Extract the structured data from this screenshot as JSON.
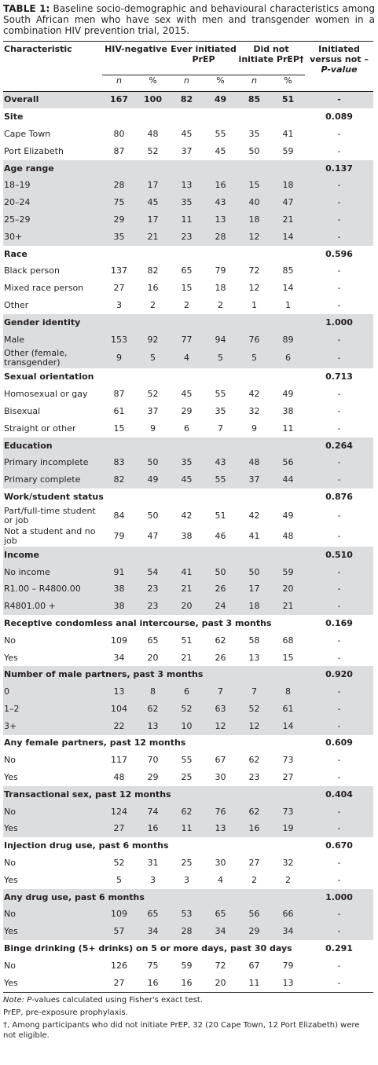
{
  "caption": {
    "label": "TABLE 1:",
    "text": " Baseline socio-demographic and behavioural characteristics among South African men who have sex with men and transgender women in a combination HIV prevention trial, 2015."
  },
  "header": {
    "characteristic": "Characteristic",
    "hiv_negative": "HIV-negative",
    "ever_initiated": "Ever initiated PrEP",
    "did_not_initiate": "Did not initiate PrEP†",
    "initiated_vs_not": "Initiated versus not – ",
    "p_value": "P-value",
    "n": "n",
    "pct": "%"
  },
  "rows": [
    {
      "type": "data",
      "shade": true,
      "label": "Overall",
      "bold": true,
      "v": [
        "167",
        "100",
        "82",
        "49",
        "85",
        "51"
      ],
      "p": "-"
    },
    {
      "type": "section",
      "label": "Site",
      "p": "0.089"
    },
    {
      "type": "data",
      "label": "Cape Town",
      "v": [
        "80",
        "48",
        "45",
        "55",
        "35",
        "41"
      ],
      "p": "-"
    },
    {
      "type": "data",
      "label": "Port Elizabeth",
      "v": [
        "87",
        "52",
        "37",
        "45",
        "50",
        "59"
      ],
      "p": "-"
    },
    {
      "type": "section",
      "shade": true,
      "label": "Age range",
      "p": "0.137"
    },
    {
      "type": "data",
      "shade": true,
      "label": "18–19",
      "v": [
        "28",
        "17",
        "13",
        "16",
        "15",
        "18"
      ],
      "p": "-"
    },
    {
      "type": "data",
      "shade": true,
      "label": "20–24",
      "v": [
        "75",
        "45",
        "35",
        "43",
        "40",
        "47"
      ],
      "p": "-"
    },
    {
      "type": "data",
      "shade": true,
      "label": "25–29",
      "v": [
        "29",
        "17",
        "11",
        "13",
        "18",
        "21"
      ],
      "p": "-"
    },
    {
      "type": "data",
      "shade": true,
      "label": "30+",
      "v": [
        "35",
        "21",
        "23",
        "28",
        "12",
        "14"
      ],
      "p": "-"
    },
    {
      "type": "section",
      "label": "Race",
      "p": "0.596"
    },
    {
      "type": "data",
      "label": "Black person",
      "v": [
        "137",
        "82",
        "65",
        "79",
        "72",
        "85"
      ],
      "p": "-"
    },
    {
      "type": "data",
      "label": "Mixed race person",
      "v": [
        "27",
        "16",
        "15",
        "18",
        "12",
        "14"
      ],
      "p": "-"
    },
    {
      "type": "data",
      "label": "Other",
      "v": [
        "3",
        "2",
        "2",
        "2",
        "1",
        "1"
      ],
      "p": "-"
    },
    {
      "type": "section",
      "shade": true,
      "label": "Gender identity",
      "p": "1.000"
    },
    {
      "type": "data",
      "shade": true,
      "label": "Male",
      "v": [
        "153",
        "92",
        "77",
        "94",
        "76",
        "89"
      ],
      "p": "-"
    },
    {
      "type": "data",
      "shade": true,
      "tall": true,
      "label": "Other (female, transgender)",
      "v": [
        "9",
        "5",
        "4",
        "5",
        "5",
        "6"
      ],
      "p": "-"
    },
    {
      "type": "section",
      "label": "Sexual orientation",
      "p": "0.713"
    },
    {
      "type": "data",
      "label": "Homosexual or gay",
      "v": [
        "87",
        "52",
        "45",
        "55",
        "42",
        "49"
      ],
      "p": "-"
    },
    {
      "type": "data",
      "label": "Bisexual",
      "v": [
        "61",
        "37",
        "29",
        "35",
        "32",
        "38"
      ],
      "p": "-"
    },
    {
      "type": "data",
      "label": "Straight or other",
      "v": [
        "15",
        "9",
        "6",
        "7",
        "9",
        "11"
      ],
      "p": "-"
    },
    {
      "type": "section",
      "shade": true,
      "label": "Education",
      "p": "0.264"
    },
    {
      "type": "data",
      "shade": true,
      "label": "Primary incomplete",
      "v": [
        "83",
        "50",
        "35",
        "43",
        "48",
        "56"
      ],
      "p": "-"
    },
    {
      "type": "data",
      "shade": true,
      "label": "Primary complete",
      "v": [
        "82",
        "49",
        "45",
        "55",
        "37",
        "44"
      ],
      "p": "-"
    },
    {
      "type": "section",
      "label": "Work/student status",
      "p": "0.876"
    },
    {
      "type": "data",
      "tall": true,
      "label": "Part/full-time student or job",
      "v": [
        "84",
        "50",
        "42",
        "51",
        "42",
        "49"
      ],
      "p": "-"
    },
    {
      "type": "data",
      "tall": true,
      "label": "Not a student and no job",
      "v": [
        "79",
        "47",
        "38",
        "46",
        "41",
        "48"
      ],
      "p": "-"
    },
    {
      "type": "section",
      "shade": true,
      "label": "Income",
      "p": "0.510"
    },
    {
      "type": "data",
      "shade": true,
      "label": "No income",
      "v": [
        "91",
        "54",
        "41",
        "50",
        "50",
        "59"
      ],
      "p": "-"
    },
    {
      "type": "data",
      "shade": true,
      "label": "R1.00 – R4800.00",
      "v": [
        "38",
        "23",
        "21",
        "26",
        "17",
        "20"
      ],
      "p": "-"
    },
    {
      "type": "data",
      "shade": true,
      "label": "R4801.00 +",
      "v": [
        "38",
        "23",
        "20",
        "24",
        "18",
        "21"
      ],
      "p": "-"
    },
    {
      "type": "section",
      "label": "Receptive condomless anal intercourse, past 3 months",
      "p": "0.169"
    },
    {
      "type": "data",
      "label": "No",
      "v": [
        "109",
        "65",
        "51",
        "62",
        "58",
        "68"
      ],
      "p": "-"
    },
    {
      "type": "data",
      "label": "Yes",
      "v": [
        "34",
        "20",
        "21",
        "26",
        "13",
        "15"
      ],
      "p": "-"
    },
    {
      "type": "section",
      "shade": true,
      "label": "Number of male partners, past 3 months",
      "p": "0.920"
    },
    {
      "type": "data",
      "shade": true,
      "label": "0",
      "v": [
        "13",
        "8",
        "6",
        "7",
        "7",
        "8"
      ],
      "p": "-"
    },
    {
      "type": "data",
      "shade": true,
      "label": "1–2",
      "v": [
        "104",
        "62",
        "52",
        "63",
        "52",
        "61"
      ],
      "p": "-"
    },
    {
      "type": "data",
      "shade": true,
      "label": "3+",
      "v": [
        "22",
        "13",
        "10",
        "12",
        "12",
        "14"
      ],
      "p": "-"
    },
    {
      "type": "section",
      "label": "Any female partners, past 12 months",
      "p": "0.609"
    },
    {
      "type": "data",
      "label": "No",
      "v": [
        "117",
        "70",
        "55",
        "67",
        "62",
        "73"
      ],
      "p": "-"
    },
    {
      "type": "data",
      "label": "Yes",
      "v": [
        "48",
        "29",
        "25",
        "30",
        "23",
        "27"
      ],
      "p": "-"
    },
    {
      "type": "section",
      "shade": true,
      "label": "Transactional sex, past 12 months",
      "p": "0.404"
    },
    {
      "type": "data",
      "shade": true,
      "label": "No",
      "v": [
        "124",
        "74",
        "62",
        "76",
        "62",
        "73"
      ],
      "p": "-"
    },
    {
      "type": "data",
      "shade": true,
      "label": "Yes",
      "v": [
        "27",
        "16",
        "11",
        "13",
        "16",
        "19"
      ],
      "p": "-"
    },
    {
      "type": "section",
      "label": "Injection drug use, past 6 months",
      "p": "0.670"
    },
    {
      "type": "data",
      "label": "No",
      "v": [
        "52",
        "31",
        "25",
        "30",
        "27",
        "32"
      ],
      "p": "-"
    },
    {
      "type": "data",
      "label": "Yes",
      "v": [
        "5",
        "3",
        "3",
        "4",
        "2",
        "2"
      ],
      "p": "-"
    },
    {
      "type": "section",
      "shade": true,
      "label": "Any drug use, past 6 months",
      "p": "1.000"
    },
    {
      "type": "data",
      "shade": true,
      "label": "No",
      "v": [
        "109",
        "65",
        "53",
        "65",
        "56",
        "66"
      ],
      "p": "-"
    },
    {
      "type": "data",
      "shade": true,
      "label": "Yes",
      "v": [
        "57",
        "34",
        "28",
        "34",
        "29",
        "34"
      ],
      "p": "-"
    },
    {
      "type": "section",
      "label": "Binge drinking (5+ drinks) on 5 or more days, past 30 days",
      "p": "0.291"
    },
    {
      "type": "data",
      "label": "No",
      "v": [
        "126",
        "75",
        "59",
        "72",
        "67",
        "79"
      ],
      "p": "-"
    },
    {
      "type": "data",
      "label": "Yes",
      "v": [
        "27",
        "16",
        "16",
        "20",
        "11",
        "13"
      ],
      "p": "-"
    }
  ],
  "notes": {
    "note_label": "Note: ",
    "note_p": "P",
    "note_rest": "-values calculated using Fisher's exact test.",
    "prep": "PrEP, pre-exposure prophylaxis.",
    "dagger": "†, Among participants who did not initiate PrEP, 32 (20 Cape Town, 12 Port Elizabeth) were not eligible."
  }
}
